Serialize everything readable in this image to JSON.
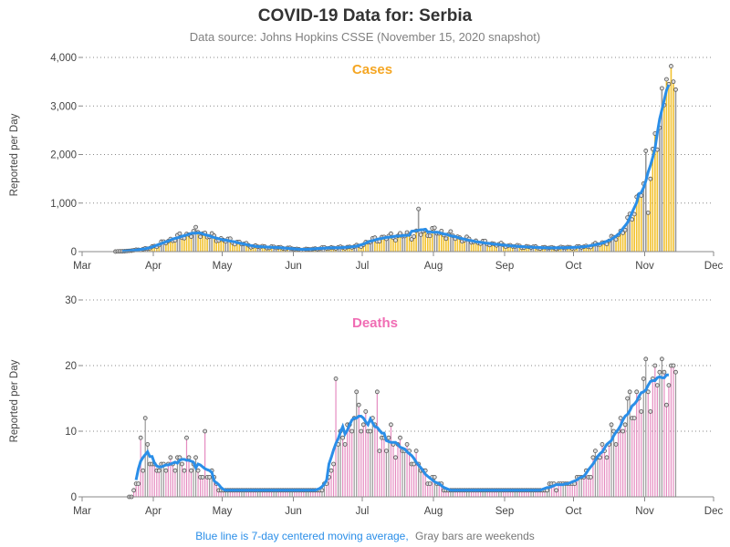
{
  "page": {
    "title": "COVID-19 Data for: Serbia",
    "subtitle": "Data source: Johns Hopkins CSSE (November 15, 2020 snapshot)",
    "footnote_blue": "Blue line is 7-day centered moving average,",
    "footnote_gray": "Gray bars are weekends"
  },
  "colors": {
    "cases_bar": "#f2c230",
    "deaths_bar": "#e58cc0",
    "cases_title": "#f5a623",
    "deaths_title": "#f06db4",
    "moving_avg": "#2a8ee8",
    "weekend_bar": "#999999",
    "point_fill": "#dddddd",
    "point_stroke": "#555555",
    "footnote_blue": "#2a8ee8",
    "footnote_gray": "#777777",
    "grid": "#888888",
    "axis": "#888888"
  },
  "x_ticks": [
    "Mar",
    "Apr",
    "May",
    "Jun",
    "Jul",
    "Aug",
    "Sep",
    "Oct",
    "Nov",
    "Dec"
  ],
  "chart_data": [
    {
      "type": "bar",
      "title": "Cases",
      "ylabel": "Reported per Day",
      "ylim": [
        0,
        4000
      ],
      "y_ticks": [
        0,
        1000,
        2000,
        3000,
        4000
      ],
      "y_tick_labels": [
        "0",
        "1,000",
        "2,000",
        "3,000",
        "4,000"
      ],
      "grid": true,
      "x_day_offset_start": 14,
      "x_day_offset_end": 258,
      "x_day_offset_note": "",
      "daily_values": [],
      "anchors": [
        [
          14,
          1
        ],
        [
          20,
          15
        ],
        [
          24,
          40
        ],
        [
          28,
          60
        ],
        [
          32,
          130
        ],
        [
          36,
          200
        ],
        [
          40,
          280
        ],
        [
          44,
          320
        ],
        [
          48,
          400
        ],
        [
          52,
          380
        ],
        [
          56,
          300
        ],
        [
          60,
          250
        ],
        [
          64,
          220
        ],
        [
          68,
          180
        ],
        [
          72,
          130
        ],
        [
          76,
          100
        ],
        [
          80,
          95
        ],
        [
          84,
          85
        ],
        [
          88,
          75
        ],
        [
          92,
          55
        ],
        [
          96,
          40
        ],
        [
          100,
          55
        ],
        [
          104,
          70
        ],
        [
          108,
          80
        ],
        [
          112,
          80
        ],
        [
          116,
          95
        ],
        [
          120,
          110
        ],
        [
          124,
          200
        ],
        [
          128,
          260
        ],
        [
          132,
          290
        ],
        [
          136,
          320
        ],
        [
          140,
          330
        ],
        [
          144,
          350
        ],
        [
          148,
          390
        ],
        [
          152,
          420
        ],
        [
          156,
          380
        ],
        [
          160,
          330
        ],
        [
          164,
          280
        ],
        [
          168,
          230
        ],
        [
          172,
          200
        ],
        [
          176,
          170
        ],
        [
          180,
          150
        ],
        [
          184,
          130
        ],
        [
          188,
          110
        ],
        [
          192,
          100
        ],
        [
          196,
          90
        ],
        [
          200,
          80
        ],
        [
          204,
          75
        ],
        [
          208,
          80
        ],
        [
          212,
          85
        ],
        [
          216,
          90
        ],
        [
          220,
          110
        ],
        [
          224,
          150
        ],
        [
          228,
          200
        ],
        [
          232,
          300
        ],
        [
          236,
          500
        ],
        [
          238,
          650
        ],
        [
          240,
          900
        ],
        [
          242,
          1200
        ],
        [
          244,
          1500
        ],
        [
          246,
          1800
        ],
        [
          248,
          2100
        ],
        [
          250,
          2400
        ],
        [
          252,
          2700
        ],
        [
          254,
          3000
        ],
        [
          256,
          3350
        ],
        [
          258,
          3600
        ]
      ],
      "overrides": [
        [
          146,
          880
        ],
        [
          254,
          3550
        ],
        [
          255,
          3450
        ],
        [
          256,
          3820
        ],
        [
          257,
          3500
        ],
        [
          250,
          2100
        ],
        [
          244,
          1400
        ],
        [
          246,
          800
        ]
      ],
      "moving_average_end": 255
    },
    {
      "type": "bar",
      "title": "Deaths",
      "ylabel": "Reported per Day",
      "ylim": [
        0,
        30
      ],
      "y_ticks": [
        0,
        10,
        20,
        30
      ],
      "y_tick_labels": [
        "0",
        "10",
        "20",
        "30"
      ],
      "grid": true,
      "x_day_offset_start": 20,
      "x_day_offset_end": 258,
      "daily_values": [],
      "anchors": [
        [
          20,
          0
        ],
        [
          22,
          1
        ],
        [
          24,
          2
        ],
        [
          26,
          4
        ],
        [
          28,
          6
        ],
        [
          30,
          5
        ],
        [
          32,
          5
        ],
        [
          34,
          4
        ],
        [
          36,
          5
        ],
        [
          38,
          6
        ],
        [
          40,
          5
        ],
        [
          42,
          5
        ],
        [
          44,
          5
        ],
        [
          46,
          6
        ],
        [
          48,
          5
        ],
        [
          50,
          4
        ],
        [
          52,
          3
        ],
        [
          54,
          3
        ],
        [
          56,
          3
        ],
        [
          58,
          2
        ],
        [
          60,
          1
        ],
        [
          62,
          1
        ],
        [
          64,
          1
        ],
        [
          70,
          1
        ],
        [
          80,
          1
        ],
        [
          90,
          1
        ],
        [
          100,
          1
        ],
        [
          104,
          1
        ],
        [
          106,
          2
        ],
        [
          108,
          4
        ],
        [
          110,
          6
        ],
        [
          112,
          8
        ],
        [
          114,
          10
        ],
        [
          116,
          11
        ],
        [
          118,
          12
        ],
        [
          120,
          13
        ],
        [
          122,
          12
        ],
        [
          124,
          11
        ],
        [
          126,
          10
        ],
        [
          128,
          9
        ],
        [
          130,
          8
        ],
        [
          132,
          8
        ],
        [
          134,
          9
        ],
        [
          136,
          8
        ],
        [
          138,
          8
        ],
        [
          140,
          7
        ],
        [
          142,
          7
        ],
        [
          144,
          6
        ],
        [
          146,
          5
        ],
        [
          148,
          4
        ],
        [
          150,
          3
        ],
        [
          152,
          3
        ],
        [
          154,
          2
        ],
        [
          156,
          2
        ],
        [
          158,
          1
        ],
        [
          162,
          1
        ],
        [
          166,
          1
        ],
        [
          170,
          1
        ],
        [
          176,
          1
        ],
        [
          182,
          1
        ],
        [
          188,
          1
        ],
        [
          194,
          1
        ],
        [
          200,
          1
        ],
        [
          204,
          2
        ],
        [
          208,
          2
        ],
        [
          212,
          2
        ],
        [
          216,
          3
        ],
        [
          220,
          4
        ],
        [
          224,
          6
        ],
        [
          228,
          8
        ],
        [
          232,
          10
        ],
        [
          236,
          12
        ],
        [
          240,
          14
        ],
        [
          244,
          16
        ],
        [
          248,
          18
        ],
        [
          250,
          19
        ],
        [
          254,
          19
        ],
        [
          258,
          20
        ]
      ],
      "overrides": [
        [
          25,
          9
        ],
        [
          27,
          12
        ],
        [
          28,
          8
        ],
        [
          45,
          9
        ],
        [
          53,
          10
        ],
        [
          110,
          18
        ],
        [
          128,
          16
        ],
        [
          252,
          21
        ],
        [
          253,
          19
        ],
        [
          255,
          17
        ],
        [
          256,
          20
        ]
      ],
      "moving_average_end": 255
    }
  ]
}
